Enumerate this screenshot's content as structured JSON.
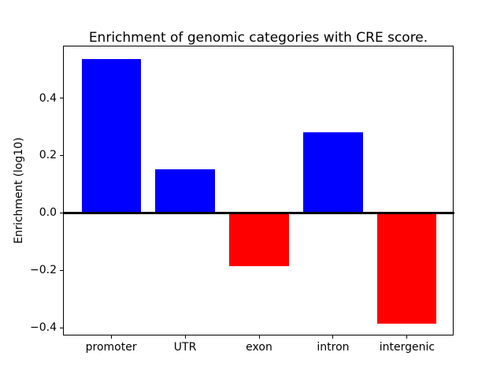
{
  "chart_data": {
    "type": "bar",
    "title": "Enrichment of genomic categories with CRE score.",
    "xlabel": "",
    "ylabel": "Enrichment (log10)",
    "categories": [
      "promoter",
      "UTR",
      "exon",
      "intron",
      "intergenic"
    ],
    "values": [
      0.535,
      0.151,
      -0.186,
      0.281,
      -0.387
    ],
    "positive_color": "#0000ff",
    "negative_color": "#ff0000",
    "yticks": [
      0.4,
      0.2,
      0.0,
      -0.2,
      -0.4
    ],
    "ytick_labels": [
      "0.4",
      "0.2",
      "0.0",
      "−0.2",
      "−0.4"
    ],
    "ylim": [
      -0.43,
      0.58
    ],
    "xlim": [
      -0.64,
      4.64
    ],
    "bar_width": 0.8,
    "zero_line": true,
    "grid": false,
    "legend": null,
    "background_color": "#ffffff",
    "spine_color": "#000000"
  }
}
